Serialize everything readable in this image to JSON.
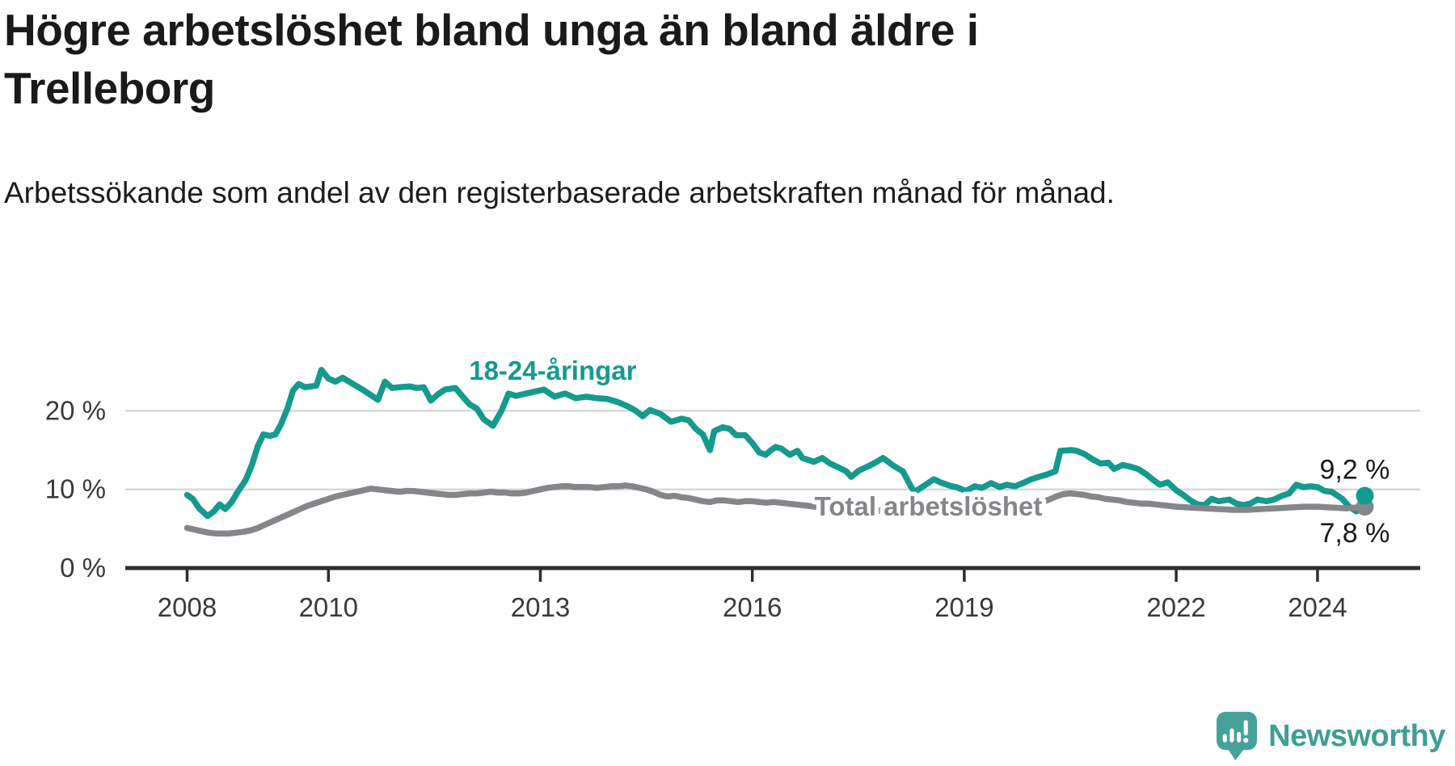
{
  "header": {
    "title": "Högre arbetslöshet bland unga än bland äldre i Trelleborg",
    "subtitle": "Arbetssökande som andel av den registerbaserade arbetskraften månad för månad."
  },
  "branding": {
    "name": "Newsworthy"
  },
  "chart_data": {
    "type": "line",
    "x_axis": {
      "range": [
        2007.9,
        2025.45
      ],
      "ticks": [
        2008,
        2010,
        2013,
        2016,
        2019,
        2022,
        2024
      ]
    },
    "y_axis": {
      "range": [
        0,
        27
      ],
      "ticks": [
        {
          "value": 0,
          "label": "0 %"
        },
        {
          "value": 10,
          "label": "10 %"
        },
        {
          "value": 20,
          "label": "20 %"
        }
      ],
      "gridlines": [
        10,
        20
      ]
    },
    "colors": {
      "accent_teal": "#159a8e",
      "accent_gray": "#85868a",
      "axis": "#2e2e2e",
      "gridline": "#d8d8d8",
      "tick_text": "#3a3a3a",
      "value_text": "#1a1a1a"
    },
    "series": [
      {
        "name": "18-24-åringar",
        "color": "#159a8e",
        "end_label": "9,2 %",
        "end_value": 9.2,
        "label_anchor": {
          "x": 2011.99,
          "y": 23.95
        },
        "points": [
          [
            2008.0,
            9.3
          ],
          [
            2008.08,
            8.8
          ],
          [
            2008.17,
            7.6
          ],
          [
            2008.29,
            6.6
          ],
          [
            2008.38,
            7.2
          ],
          [
            2008.46,
            8.1
          ],
          [
            2008.54,
            7.5
          ],
          [
            2008.63,
            8.4
          ],
          [
            2008.71,
            9.6
          ],
          [
            2008.83,
            11.2
          ],
          [
            2008.92,
            13.2
          ],
          [
            2009.0,
            15.5
          ],
          [
            2009.08,
            17.0
          ],
          [
            2009.17,
            16.8
          ],
          [
            2009.25,
            17.0
          ],
          [
            2009.33,
            18.3
          ],
          [
            2009.42,
            20.3
          ],
          [
            2009.5,
            22.6
          ],
          [
            2009.58,
            23.4
          ],
          [
            2009.67,
            23.0
          ],
          [
            2009.75,
            23.1
          ],
          [
            2009.83,
            23.2
          ],
          [
            2009.9,
            25.2
          ],
          [
            2010.0,
            24.1
          ],
          [
            2010.1,
            23.7
          ],
          [
            2010.2,
            24.2
          ],
          [
            2010.35,
            23.4
          ],
          [
            2010.5,
            22.6
          ],
          [
            2010.6,
            22.0
          ],
          [
            2010.7,
            21.4
          ],
          [
            2010.8,
            23.7
          ],
          [
            2010.9,
            22.9
          ],
          [
            2011.0,
            23.0
          ],
          [
            2011.15,
            23.1
          ],
          [
            2011.25,
            22.9
          ],
          [
            2011.35,
            23.0
          ],
          [
            2011.45,
            21.3
          ],
          [
            2011.55,
            22.1
          ],
          [
            2011.65,
            22.7
          ],
          [
            2011.8,
            22.9
          ],
          [
            2011.9,
            21.8
          ],
          [
            2012.0,
            20.8
          ],
          [
            2012.1,
            20.3
          ],
          [
            2012.2,
            18.9
          ],
          [
            2012.33,
            18.1
          ],
          [
            2012.45,
            20.0
          ],
          [
            2012.55,
            22.2
          ],
          [
            2012.65,
            21.9
          ],
          [
            2012.75,
            22.1
          ],
          [
            2012.85,
            22.3
          ],
          [
            2012.95,
            22.5
          ],
          [
            2013.05,
            22.7
          ],
          [
            2013.2,
            21.8
          ],
          [
            2013.35,
            22.2
          ],
          [
            2013.5,
            21.6
          ],
          [
            2013.65,
            21.8
          ],
          [
            2013.8,
            21.6
          ],
          [
            2013.95,
            21.5
          ],
          [
            2014.1,
            21.1
          ],
          [
            2014.25,
            20.5
          ],
          [
            2014.35,
            20.0
          ],
          [
            2014.45,
            19.3
          ],
          [
            2014.55,
            20.1
          ],
          [
            2014.7,
            19.6
          ],
          [
            2014.85,
            18.6
          ],
          [
            2015.0,
            19.0
          ],
          [
            2015.1,
            18.8
          ],
          [
            2015.2,
            17.7
          ],
          [
            2015.3,
            17.0
          ],
          [
            2015.4,
            15.0
          ],
          [
            2015.46,
            17.4
          ],
          [
            2015.58,
            17.9
          ],
          [
            2015.68,
            17.7
          ],
          [
            2015.77,
            16.9
          ],
          [
            2015.9,
            16.9
          ],
          [
            2016.0,
            15.9
          ],
          [
            2016.1,
            14.7
          ],
          [
            2016.19,
            14.4
          ],
          [
            2016.25,
            14.9
          ],
          [
            2016.33,
            15.4
          ],
          [
            2016.41,
            15.2
          ],
          [
            2016.53,
            14.4
          ],
          [
            2016.64,
            14.9
          ],
          [
            2016.71,
            14.0
          ],
          [
            2016.87,
            13.5
          ],
          [
            2016.99,
            14.0
          ],
          [
            2017.1,
            13.3
          ],
          [
            2017.22,
            12.8
          ],
          [
            2017.33,
            12.3
          ],
          [
            2017.4,
            11.6
          ],
          [
            2017.51,
            12.4
          ],
          [
            2017.63,
            12.9
          ],
          [
            2017.74,
            13.4
          ],
          [
            2017.85,
            14.0
          ],
          [
            2018.0,
            13.0
          ],
          [
            2018.13,
            12.3
          ],
          [
            2018.25,
            10.3
          ],
          [
            2018.3,
            9.7
          ],
          [
            2018.42,
            10.4
          ],
          [
            2018.57,
            11.3
          ],
          [
            2018.66,
            10.9
          ],
          [
            2018.82,
            10.4
          ],
          [
            2018.89,
            10.3
          ],
          [
            2019.02,
            9.8
          ],
          [
            2019.15,
            10.4
          ],
          [
            2019.25,
            10.2
          ],
          [
            2019.38,
            10.8
          ],
          [
            2019.5,
            10.3
          ],
          [
            2019.6,
            10.6
          ],
          [
            2019.72,
            10.4
          ],
          [
            2019.83,
            10.8
          ],
          [
            2019.95,
            11.3
          ],
          [
            2020.06,
            11.6
          ],
          [
            2020.17,
            11.9
          ],
          [
            2020.29,
            12.3
          ],
          [
            2020.36,
            14.9
          ],
          [
            2020.52,
            15.0
          ],
          [
            2020.59,
            14.9
          ],
          [
            2020.7,
            14.5
          ],
          [
            2020.82,
            13.8
          ],
          [
            2020.93,
            13.3
          ],
          [
            2021.04,
            13.4
          ],
          [
            2021.12,
            12.6
          ],
          [
            2021.24,
            13.1
          ],
          [
            2021.35,
            12.9
          ],
          [
            2021.46,
            12.6
          ],
          [
            2021.58,
            11.9
          ],
          [
            2021.69,
            11.1
          ],
          [
            2021.77,
            10.6
          ],
          [
            2021.88,
            10.9
          ],
          [
            2022.0,
            9.9
          ],
          [
            2022.1,
            9.3
          ],
          [
            2022.2,
            8.6
          ],
          [
            2022.3,
            8.1
          ],
          [
            2022.4,
            8.0
          ],
          [
            2022.5,
            8.8
          ],
          [
            2022.6,
            8.5
          ],
          [
            2022.75,
            8.7
          ],
          [
            2022.85,
            8.2
          ],
          [
            2022.95,
            8.0
          ],
          [
            2023.05,
            8.2
          ],
          [
            2023.15,
            8.7
          ],
          [
            2023.28,
            8.5
          ],
          [
            2023.38,
            8.7
          ],
          [
            2023.5,
            9.2
          ],
          [
            2023.6,
            9.5
          ],
          [
            2023.7,
            10.6
          ],
          [
            2023.8,
            10.3
          ],
          [
            2023.9,
            10.4
          ],
          [
            2024.0,
            10.3
          ],
          [
            2024.1,
            9.8
          ],
          [
            2024.2,
            9.7
          ],
          [
            2024.35,
            8.8
          ],
          [
            2024.45,
            7.8
          ],
          [
            2024.55,
            7.2
          ],
          [
            2024.67,
            9.2
          ]
        ]
      },
      {
        "name": "Total arbetslöshet",
        "color": "#85868a",
        "end_label": "7,8 %",
        "end_value": 7.8,
        "label_anchor": {
          "x": 2016.88,
          "y": 6.68
        },
        "points": [
          [
            2008.0,
            5.1
          ],
          [
            2008.1,
            4.9
          ],
          [
            2008.2,
            4.7
          ],
          [
            2008.3,
            4.5
          ],
          [
            2008.4,
            4.4
          ],
          [
            2008.5,
            4.4
          ],
          [
            2008.6,
            4.4
          ],
          [
            2008.7,
            4.5
          ],
          [
            2008.8,
            4.6
          ],
          [
            2008.9,
            4.8
          ],
          [
            2009.0,
            5.1
          ],
          [
            2009.1,
            5.5
          ],
          [
            2009.2,
            5.9
          ],
          [
            2009.3,
            6.3
          ],
          [
            2009.4,
            6.7
          ],
          [
            2009.5,
            7.1
          ],
          [
            2009.6,
            7.5
          ],
          [
            2009.7,
            7.9
          ],
          [
            2009.8,
            8.2
          ],
          [
            2009.9,
            8.5
          ],
          [
            2010.0,
            8.8
          ],
          [
            2010.1,
            9.1
          ],
          [
            2010.2,
            9.3
          ],
          [
            2010.3,
            9.5
          ],
          [
            2010.4,
            9.7
          ],
          [
            2010.5,
            9.9
          ],
          [
            2010.6,
            10.1
          ],
          [
            2010.7,
            10.0
          ],
          [
            2010.8,
            9.9
          ],
          [
            2010.9,
            9.8
          ],
          [
            2011.0,
            9.7
          ],
          [
            2011.1,
            9.8
          ],
          [
            2011.2,
            9.8
          ],
          [
            2011.3,
            9.7
          ],
          [
            2011.4,
            9.6
          ],
          [
            2011.5,
            9.5
          ],
          [
            2011.6,
            9.4
          ],
          [
            2011.7,
            9.3
          ],
          [
            2011.8,
            9.3
          ],
          [
            2011.9,
            9.4
          ],
          [
            2012.0,
            9.5
          ],
          [
            2012.1,
            9.5
          ],
          [
            2012.2,
            9.6
          ],
          [
            2012.3,
            9.7
          ],
          [
            2012.4,
            9.6
          ],
          [
            2012.5,
            9.6
          ],
          [
            2012.6,
            9.5
          ],
          [
            2012.7,
            9.5
          ],
          [
            2012.8,
            9.6
          ],
          [
            2012.9,
            9.8
          ],
          [
            2013.0,
            10.0
          ],
          [
            2013.1,
            10.2
          ],
          [
            2013.2,
            10.3
          ],
          [
            2013.3,
            10.4
          ],
          [
            2013.4,
            10.4
          ],
          [
            2013.5,
            10.3
          ],
          [
            2013.6,
            10.3
          ],
          [
            2013.7,
            10.3
          ],
          [
            2013.8,
            10.2
          ],
          [
            2013.9,
            10.3
          ],
          [
            2014.0,
            10.4
          ],
          [
            2014.1,
            10.4
          ],
          [
            2014.2,
            10.5
          ],
          [
            2014.3,
            10.4
          ],
          [
            2014.4,
            10.2
          ],
          [
            2014.5,
            10.0
          ],
          [
            2014.6,
            9.7
          ],
          [
            2014.7,
            9.3
          ],
          [
            2014.8,
            9.1
          ],
          [
            2014.9,
            9.2
          ],
          [
            2015.0,
            9.0
          ],
          [
            2015.1,
            8.9
          ],
          [
            2015.2,
            8.7
          ],
          [
            2015.3,
            8.5
          ],
          [
            2015.4,
            8.4
          ],
          [
            2015.5,
            8.6
          ],
          [
            2015.6,
            8.6
          ],
          [
            2015.7,
            8.5
          ],
          [
            2015.8,
            8.4
          ],
          [
            2015.9,
            8.5
          ],
          [
            2016.0,
            8.5
          ],
          [
            2016.1,
            8.4
          ],
          [
            2016.2,
            8.3
          ],
          [
            2016.3,
            8.4
          ],
          [
            2016.4,
            8.3
          ],
          [
            2016.5,
            8.2
          ],
          [
            2016.6,
            8.1
          ],
          [
            2016.7,
            8.0
          ],
          [
            2016.8,
            7.9
          ],
          [
            2016.9,
            7.8
          ],
          [
            2017.0,
            7.7
          ],
          [
            2017.2,
            7.6
          ],
          [
            2017.4,
            7.5
          ],
          [
            2017.6,
            7.4
          ],
          [
            2017.8,
            7.3
          ],
          [
            2018.0,
            7.3
          ],
          [
            2018.2,
            7.2
          ],
          [
            2018.4,
            7.3
          ],
          [
            2018.6,
            7.3
          ],
          [
            2018.8,
            7.4
          ],
          [
            2019.0,
            7.4
          ],
          [
            2019.2,
            7.5
          ],
          [
            2019.4,
            7.6
          ],
          [
            2019.6,
            7.7
          ],
          [
            2019.8,
            7.9
          ],
          [
            2020.0,
            8.1
          ],
          [
            2020.1,
            8.4
          ],
          [
            2020.2,
            8.7
          ],
          [
            2020.3,
            9.1
          ],
          [
            2020.4,
            9.4
          ],
          [
            2020.5,
            9.5
          ],
          [
            2020.6,
            9.4
          ],
          [
            2020.7,
            9.3
          ],
          [
            2020.8,
            9.1
          ],
          [
            2020.9,
            9.0
          ],
          [
            2021.0,
            8.8
          ],
          [
            2021.1,
            8.7
          ],
          [
            2021.2,
            8.6
          ],
          [
            2021.3,
            8.4
          ],
          [
            2021.4,
            8.3
          ],
          [
            2021.5,
            8.2
          ],
          [
            2021.6,
            8.2
          ],
          [
            2021.7,
            8.1
          ],
          [
            2021.8,
            8.0
          ],
          [
            2021.9,
            7.9
          ],
          [
            2022.0,
            7.8
          ],
          [
            2022.2,
            7.7
          ],
          [
            2022.4,
            7.6
          ],
          [
            2022.6,
            7.5
          ],
          [
            2022.8,
            7.4
          ],
          [
            2023.0,
            7.4
          ],
          [
            2023.2,
            7.5
          ],
          [
            2023.4,
            7.6
          ],
          [
            2023.6,
            7.7
          ],
          [
            2023.8,
            7.8
          ],
          [
            2024.0,
            7.8
          ],
          [
            2024.2,
            7.7
          ],
          [
            2024.4,
            7.6
          ],
          [
            2024.55,
            7.7
          ],
          [
            2024.67,
            7.8
          ]
        ]
      }
    ]
  }
}
